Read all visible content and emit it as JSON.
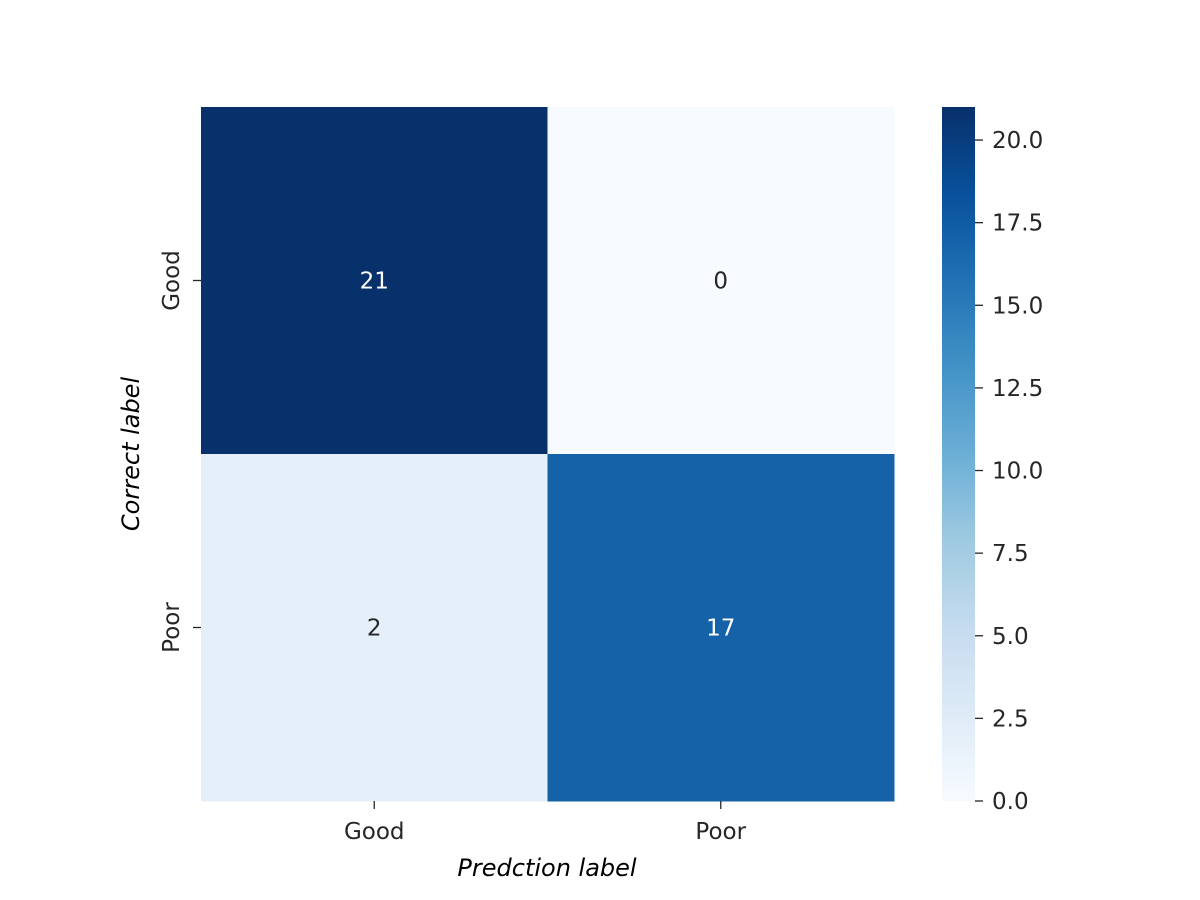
{
  "chart_data": {
    "type": "heatmap",
    "x_categories": [
      "Good",
      "Poor"
    ],
    "y_categories": [
      "Good",
      "Poor"
    ],
    "values": [
      [
        21,
        0
      ],
      [
        2,
        17
      ]
    ],
    "xlabel": "Predction label",
    "ylabel": "Correct label",
    "colorbar": {
      "range": [
        0,
        21
      ],
      "ticks": [
        0.0,
        2.5,
        5.0,
        7.5,
        10.0,
        12.5,
        15.0,
        17.5,
        20.0
      ],
      "tick_labels": [
        "0.0",
        "2.5",
        "5.0",
        "7.5",
        "10.0",
        "12.5",
        "15.0",
        "17.5",
        "20.0"
      ]
    },
    "colormap": "Blues",
    "colors": {
      "low": "#f7fbff",
      "high": "#08306b",
      "annot_dark": "#262626",
      "annot_light": "#ffffff"
    }
  }
}
